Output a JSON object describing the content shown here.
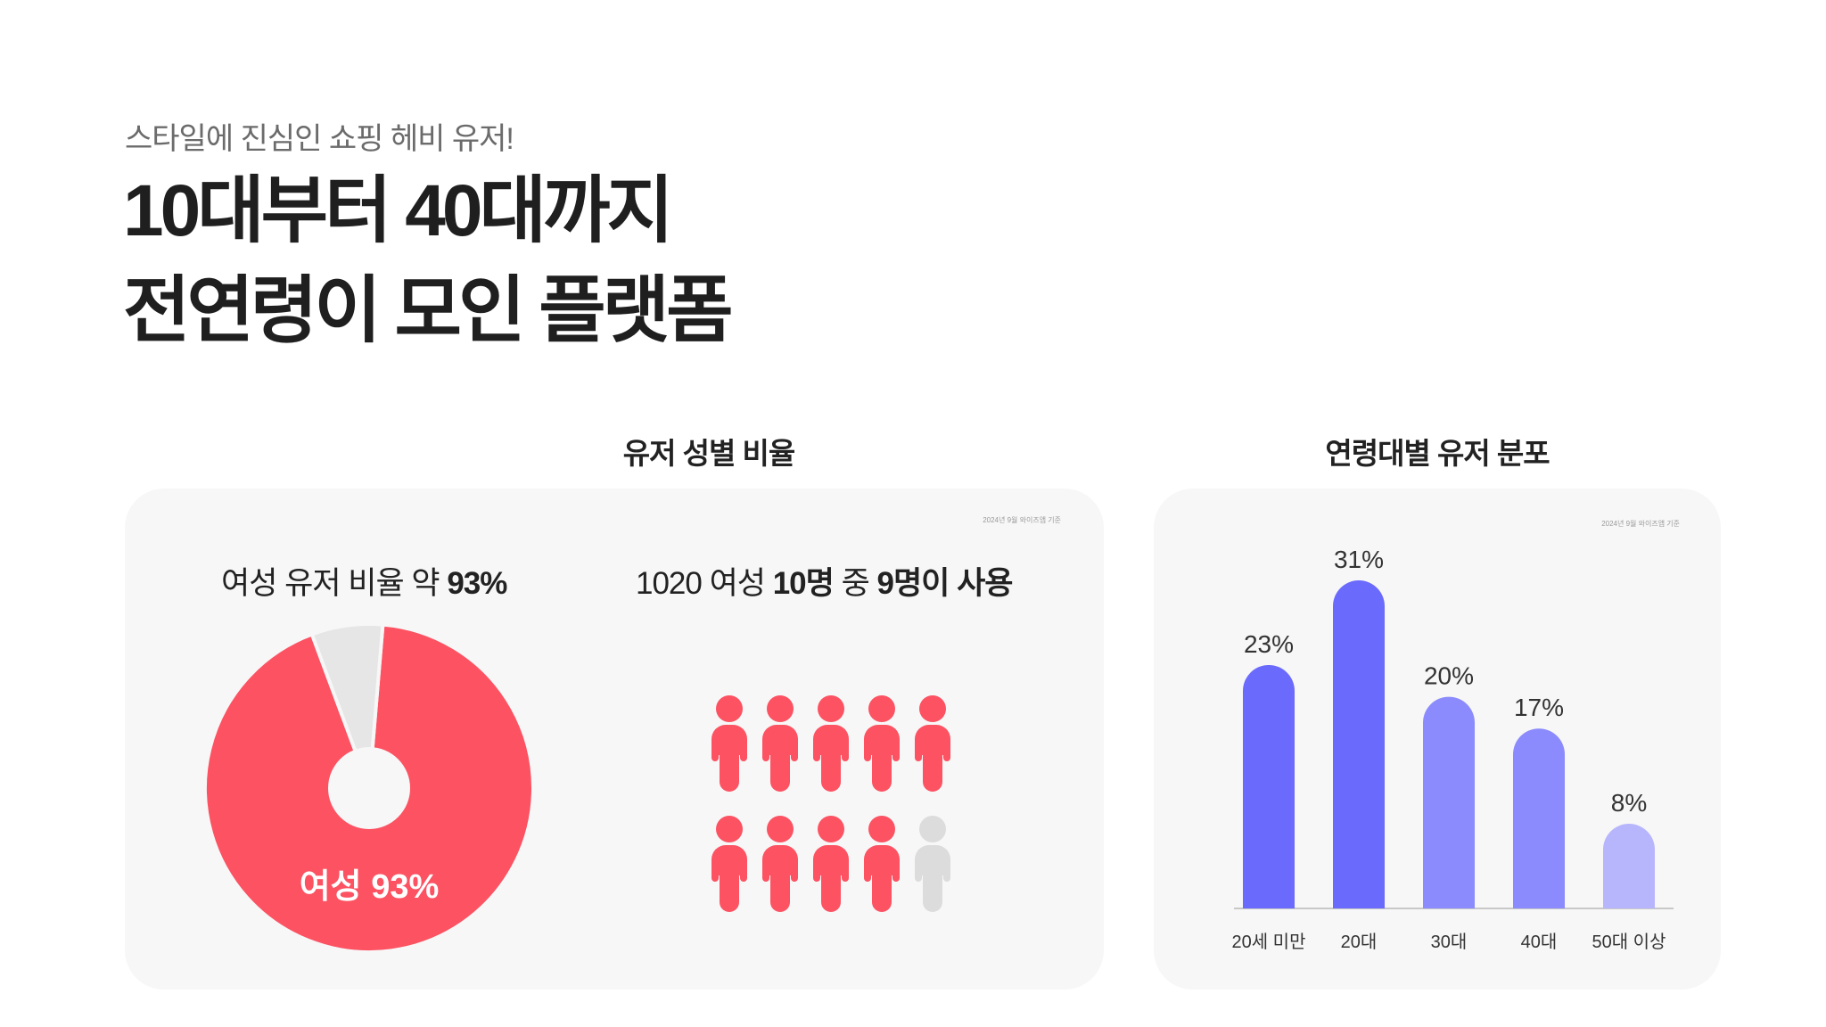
{
  "header": {
    "subtitle": "스타일에 진심인 쇼핑 헤비 유저!",
    "title_line1": "10대부터 40대까지",
    "title_line2": "전연령이 모인 플랫폼"
  },
  "gender_section": {
    "section_title": "유저 성별 비율",
    "note": "2024년 9월 와이즈앱 기준",
    "left_heading_prefix": "여성 유저 비율 약 ",
    "left_heading_bold": "93%",
    "right_heading_prefix": "1020 여성 ",
    "right_heading_bold1": "10명",
    "right_heading_mid": " 중 ",
    "right_heading_bold2": "9명이 사용",
    "pie_label": "여성 93%"
  },
  "age_section": {
    "section_title": "연령대별 유저 분포",
    "note": "2024년 9월 와이즈앱 기준"
  },
  "colors": {
    "female": "#fc5262",
    "other": "#e6e6e6",
    "person_gray": "#dcdcdc",
    "bar_dark": "#6a6afd",
    "bar_mid": "#8b8bfd",
    "bar_light": "#b7b6fd",
    "card_bg": "#f7f7f7"
  },
  "chart_data": [
    {
      "type": "pie",
      "slices": [
        {
          "label": "여성",
          "value": 93
        },
        {
          "label": "",
          "value": 7
        }
      ],
      "data_label": "여성 93%"
    },
    {
      "type": "pictogram",
      "total": 10,
      "highlighted": 9,
      "icon": "person-icon"
    },
    {
      "type": "bar",
      "categories": [
        "20세 미만",
        "20대",
        "30대",
        "40대",
        "50대 이상"
      ],
      "values": [
        23,
        31,
        20,
        17,
        8
      ],
      "value_labels": [
        "23%",
        "31%",
        "20%",
        "17%",
        "8%"
      ],
      "bar_colors": [
        "#6a6afd",
        "#6a6afd",
        "#8b8bfd",
        "#8b8bfd",
        "#b7b6fd"
      ],
      "ylim": [
        0,
        31
      ]
    }
  ]
}
